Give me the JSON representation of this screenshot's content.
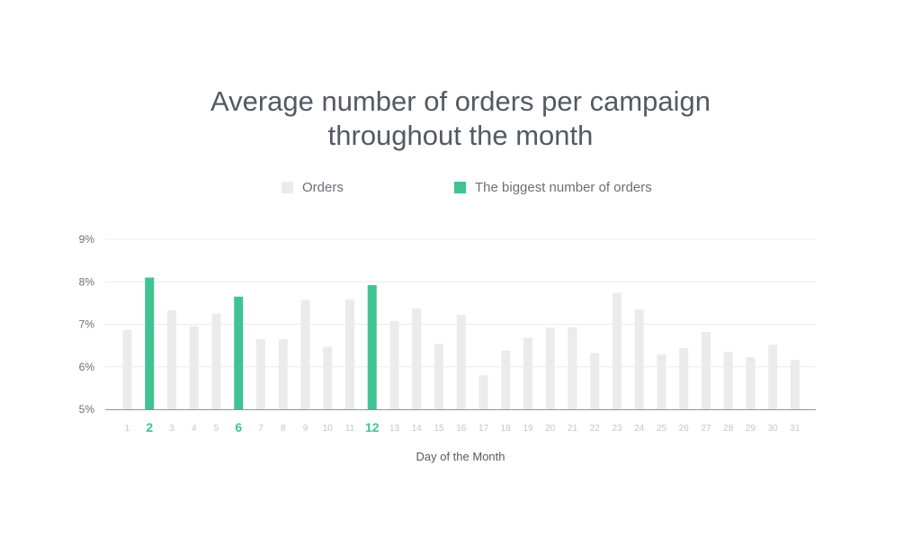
{
  "title_line1": "Average number of orders per campaign",
  "title_line2": "throughout the month",
  "legend": [
    {
      "label": "Orders",
      "color": "#ebebeb"
    },
    {
      "label": "The biggest number of orders",
      "color": "#3fc393"
    }
  ],
  "colors": {
    "normal": "#ebebeb",
    "highlight": "#3fc393",
    "grid": "#ececec",
    "axis": "#8f949a",
    "tick": "#c2c6ca",
    "ytick": "#6b6f75"
  },
  "chart_data": {
    "type": "bar",
    "xlabel": "Day of the Month",
    "ylabel": "",
    "ylim": [
      5,
      9
    ],
    "yticks": [
      5,
      6,
      7,
      8,
      9
    ],
    "ytick_labels": [
      "5%",
      "6%",
      "7%",
      "8%",
      "9%"
    ],
    "categories": [
      "1",
      "2",
      "3",
      "4",
      "5",
      "6",
      "7",
      "8",
      "9",
      "10",
      "11",
      "12",
      "13",
      "14",
      "15",
      "16",
      "17",
      "18",
      "19",
      "20",
      "21",
      "22",
      "23",
      "24",
      "25",
      "26",
      "27",
      "28",
      "29",
      "30",
      "31"
    ],
    "series": [
      {
        "name": "Orders",
        "values": [
          6.87,
          8.1,
          7.33,
          6.95,
          7.25,
          7.65,
          6.65,
          6.65,
          7.57,
          6.47,
          7.58,
          7.92,
          7.08,
          7.37,
          6.54,
          7.22,
          5.8,
          6.38,
          6.68,
          6.92,
          6.93,
          6.32,
          7.74,
          7.35,
          6.29,
          6.44,
          6.82,
          6.35,
          6.23,
          6.52,
          6.16
        ]
      }
    ],
    "highlighted": [
      "2",
      "6",
      "12"
    ],
    "grid": true,
    "legend_position": "top"
  }
}
